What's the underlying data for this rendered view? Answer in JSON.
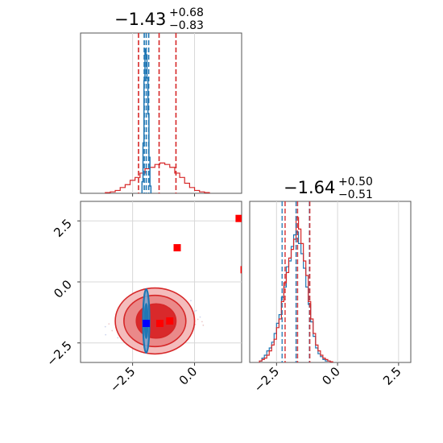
{
  "chart_data": {
    "type": "corner",
    "series": [
      {
        "color": "#d62728"
      },
      {
        "color": "#1f77b4"
      }
    ],
    "panels": [
      {
        "id": "hist-param-1",
        "type": "histogram",
        "title": {
          "value": "−1.43",
          "upper": "+0.68",
          "lower": "−0.83"
        },
        "x_range": [
          -4.6,
          1.9
        ],
        "grid": true,
        "quantile_lines": {
          "#d62728": [
            -2.26,
            -1.43,
            -0.75
          ],
          "#1f77b4": [
            -2.03,
            -1.95,
            -1.85
          ]
        },
        "hist_red": {
          "bins": [
            -3.6,
            -3.4,
            -3.2,
            -3.0,
            -2.8,
            -2.6,
            -2.4,
            -2.2,
            -2.0,
            -1.8,
            -1.6,
            -1.4,
            -1.2,
            -1.0,
            -0.8,
            -0.6,
            -0.4,
            -0.2,
            0.0,
            0.2,
            0.4,
            0.6
          ],
          "heights": [
            0.005,
            0.01,
            0.02,
            0.04,
            0.06,
            0.09,
            0.11,
            0.14,
            0.17,
            0.18,
            0.2,
            0.21,
            0.2,
            0.18,
            0.14,
            0.11,
            0.07,
            0.04,
            0.02,
            0.01,
            0.005
          ]
        },
        "hist_blue": {
          "bins": [
            -2.12,
            -2.08,
            -2.04,
            -2.0,
            -1.96,
            -1.92,
            -1.88,
            -1.84,
            -1.8,
            -1.76
          ],
          "heights": [
            0.08,
            0.35,
            0.78,
            1.0,
            0.96,
            0.8,
            0.55,
            0.25,
            0.05
          ]
        }
      },
      {
        "id": "scatter-2d",
        "type": "2d",
        "x_range": [
          -4.6,
          1.9
        ],
        "y_range": [
          -3.3,
          3.3
        ],
        "grid": true,
        "x_ticks": [
          "−2.5",
          "0.0"
        ],
        "y_ticks": [
          "2.5",
          "0.0",
          "−2.5"
        ],
        "x_tick_values": [
          -2.5,
          0.0
        ],
        "y_tick_values": [
          2.5,
          0.0,
          -2.5
        ],
        "outliers_red": [
          [
            -0.7,
            1.4
          ],
          [
            1.8,
            2.6
          ],
          [
            2.0,
            0.5
          ],
          [
            -1.0,
            -1.6
          ],
          [
            -1.4,
            -1.7
          ]
        ],
        "blue_points": [
          [
            -1.95,
            -1.7
          ]
        ],
        "red_contours": [
          {
            "level": "outer",
            "cx": -1.6,
            "cy": -1.6,
            "rx": 3.2,
            "ry": 1.35
          },
          {
            "level": "mid",
            "cx": -1.6,
            "cy": -1.6,
            "rx": 2.5,
            "ry": 1.05
          },
          {
            "level": "inner",
            "cx": -1.55,
            "cy": -1.6,
            "rx": 1.6,
            "ry": 0.7
          }
        ],
        "blue_contour": {
          "cx": -1.95,
          "cy": -1.6,
          "rx": 0.13,
          "ry": 1.3
        }
      },
      {
        "id": "hist-param-2",
        "type": "histogram",
        "title": {
          "value": "−1.64",
          "upper": "+0.50",
          "lower": "−0.51"
        },
        "x_range": [
          -3.6,
          3.0
        ],
        "grid": true,
        "x_ticks": [
          "−2.5",
          "0.0",
          "2.5"
        ],
        "x_tick_values": [
          -2.5,
          0.0,
          2.5
        ],
        "quantile_lines": {
          "#d62728": [
            -2.15,
            -1.64,
            -1.14
          ],
          "#1f77b4": [
            -2.27,
            -1.7,
            -1.15
          ]
        },
        "hist_red": {
          "bins": [
            -3.2,
            -3.1,
            -3.0,
            -2.9,
            -2.8,
            -2.7,
            -2.6,
            -2.5,
            -2.4,
            -2.3,
            -2.2,
            -2.1,
            -2.0,
            -1.9,
            -1.8,
            -1.7,
            -1.6,
            -1.5,
            -1.4,
            -1.3,
            -1.2,
            -1.1,
            -1.0,
            -0.9,
            -0.8,
            -0.7,
            -0.6,
            -0.5,
            -0.4,
            -0.3,
            -0.2
          ],
          "heights": [
            0.01,
            0.02,
            0.03,
            0.05,
            0.08,
            0.12,
            0.16,
            0.24,
            0.3,
            0.42,
            0.55,
            0.62,
            0.72,
            0.78,
            0.85,
            1.0,
            0.92,
            0.82,
            0.7,
            0.6,
            0.42,
            0.3,
            0.2,
            0.12,
            0.08,
            0.05,
            0.03,
            0.02,
            0.01,
            0.005
          ]
        },
        "hist_blue": {
          "bins": [
            -3.2,
            -3.1,
            -3.0,
            -2.9,
            -2.8,
            -2.7,
            -2.6,
            -2.5,
            -2.4,
            -2.3,
            -2.2,
            -2.1,
            -2.0,
            -1.9,
            -1.8,
            -1.7,
            -1.6,
            -1.5,
            -1.4,
            -1.3,
            -1.2,
            -1.1,
            -1.0,
            -0.9,
            -0.8,
            -0.7,
            -0.6,
            -0.5,
            -0.4,
            -0.3,
            -0.2
          ],
          "heights": [
            0.01,
            0.03,
            0.05,
            0.08,
            0.1,
            0.14,
            0.2,
            0.27,
            0.33,
            0.45,
            0.52,
            0.66,
            0.7,
            0.8,
            0.88,
            0.9,
            0.82,
            0.75,
            0.65,
            0.52,
            0.4,
            0.28,
            0.18,
            0.1,
            0.06,
            0.04,
            0.02,
            0.01,
            0.01,
            0.005
          ]
        }
      }
    ]
  }
}
